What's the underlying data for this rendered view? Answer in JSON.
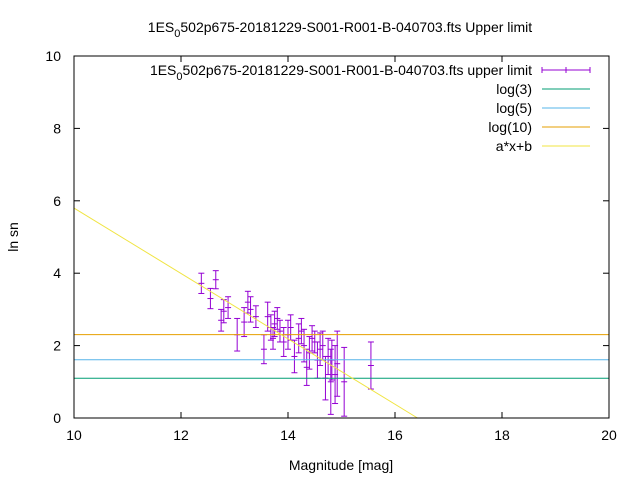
{
  "chart_data": {
    "type": "scatter",
    "title": "1ES_0502p675-20181229-S001-R001-B-040703.fts Upper limit",
    "title_parts": {
      "pre": "1ES",
      "sub": "0",
      "post": "502p675-20181229-S001-R001-B-040703.fts Upper limit"
    },
    "xlabel": "Magnitude [mag]",
    "ylabel": "ln sn",
    "xlim": [
      10,
      20
    ],
    "ylim": [
      0,
      10
    ],
    "x_ticks": [
      "10",
      "12",
      "14",
      "16",
      "18",
      "20"
    ],
    "y_ticks": [
      "0",
      "2",
      "4",
      "6",
      "8",
      "10"
    ],
    "grid": false,
    "legend_placement": "top-right",
    "series": [
      {
        "name": "1ES_0502p675-20181229-S001-R001-B-040703.fts upper limit",
        "name_parts": {
          "pre": "1ES",
          "sub": "0",
          "post": "502p675-20181229-S001-R001-B-040703.fts upper limit"
        },
        "kind": "errorbars",
        "color": "#9400d3",
        "points": [
          {
            "x": 12.38,
            "y": 3.72,
            "err": 0.28
          },
          {
            "x": 12.55,
            "y": 3.3,
            "err": 0.28
          },
          {
            "x": 12.65,
            "y": 3.82,
            "err": 0.25
          },
          {
            "x": 12.75,
            "y": 2.7,
            "err": 0.3
          },
          {
            "x": 12.8,
            "y": 2.95,
            "err": 0.32
          },
          {
            "x": 12.88,
            "y": 3.05,
            "err": 0.3
          },
          {
            "x": 13.05,
            "y": 2.3,
            "err": 0.45
          },
          {
            "x": 13.18,
            "y": 2.65,
            "err": 0.4
          },
          {
            "x": 13.25,
            "y": 3.2,
            "err": 0.3
          },
          {
            "x": 13.3,
            "y": 3.0,
            "err": 0.35
          },
          {
            "x": 13.4,
            "y": 2.8,
            "err": 0.3
          },
          {
            "x": 13.55,
            "y": 1.9,
            "err": 0.4
          },
          {
            "x": 13.62,
            "y": 2.8,
            "err": 0.4
          },
          {
            "x": 13.68,
            "y": 2.5,
            "err": 0.35
          },
          {
            "x": 13.72,
            "y": 2.2,
            "err": 0.3
          },
          {
            "x": 13.75,
            "y": 2.6,
            "err": 0.35
          },
          {
            "x": 13.8,
            "y": 2.75,
            "err": 0.3
          },
          {
            "x": 13.85,
            "y": 2.4,
            "err": 0.3
          },
          {
            "x": 13.92,
            "y": 2.1,
            "err": 0.4
          },
          {
            "x": 14.0,
            "y": 2.3,
            "err": 0.4
          },
          {
            "x": 14.05,
            "y": 2.5,
            "err": 0.35
          },
          {
            "x": 14.12,
            "y": 1.7,
            "err": 0.45
          },
          {
            "x": 14.2,
            "y": 2.2,
            "err": 0.4
          },
          {
            "x": 14.25,
            "y": 2.4,
            "err": 0.35
          },
          {
            "x": 14.3,
            "y": 2.0,
            "err": 0.45
          },
          {
            "x": 14.35,
            "y": 1.4,
            "err": 0.5
          },
          {
            "x": 14.4,
            "y": 1.8,
            "err": 0.45
          },
          {
            "x": 14.45,
            "y": 2.2,
            "err": 0.35
          },
          {
            "x": 14.5,
            "y": 2.1,
            "err": 0.3
          },
          {
            "x": 14.55,
            "y": 1.6,
            "err": 0.5
          },
          {
            "x": 14.6,
            "y": 1.9,
            "err": 0.45
          },
          {
            "x": 14.65,
            "y": 2.0,
            "err": 0.4
          },
          {
            "x": 14.7,
            "y": 1.1,
            "err": 0.6
          },
          {
            "x": 14.75,
            "y": 1.7,
            "err": 0.5
          },
          {
            "x": 14.8,
            "y": 1.0,
            "err": 0.9
          },
          {
            "x": 14.82,
            "y": 1.6,
            "err": 0.55
          },
          {
            "x": 14.88,
            "y": 1.2,
            "err": 0.8
          },
          {
            "x": 14.92,
            "y": 1.5,
            "err": 0.9
          },
          {
            "x": 15.05,
            "y": 1.0,
            "err": 0.95
          },
          {
            "x": 15.55,
            "y": 1.45,
            "err": 0.65
          }
        ]
      },
      {
        "name": "log(3)",
        "kind": "hline",
        "y": 1.0986,
        "color": "#009e73"
      },
      {
        "name": "log(5)",
        "kind": "hline",
        "y": 1.6094,
        "color": "#56b4e9"
      },
      {
        "name": "log(10)",
        "kind": "hline",
        "y": 2.3026,
        "color": "#e69f00"
      },
      {
        "name": "a*x+b",
        "kind": "fitline",
        "color": "#f0e442",
        "x": [
          10,
          16.42
        ],
        "y": [
          5.8,
          0
        ]
      }
    ]
  }
}
